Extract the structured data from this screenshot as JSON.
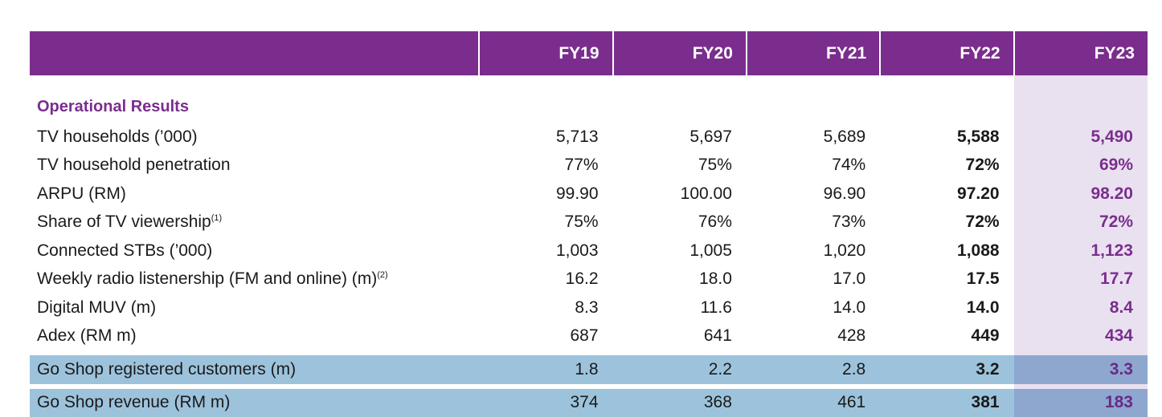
{
  "header": {
    "years": [
      "FY19",
      "FY20",
      "FY21",
      "FY22",
      "FY23"
    ]
  },
  "section_title": "Operational Results",
  "rows": [
    {
      "label": "TV households (’000)",
      "sup": "",
      "values": [
        "5,713",
        "5,697",
        "5,689",
        "5,588",
        "5,490"
      ]
    },
    {
      "label": "TV household penetration",
      "sup": "",
      "values": [
        "77%",
        "75%",
        "74%",
        "72%",
        "69%"
      ]
    },
    {
      "label": "ARPU (RM)",
      "sup": "",
      "values": [
        "99.90",
        "100.00",
        "96.90",
        "97.20",
        "98.20"
      ]
    },
    {
      "label": "Share of TV viewership",
      "sup": "(1)",
      "values": [
        "75%",
        "76%",
        "73%",
        "72%",
        "72%"
      ]
    },
    {
      "label": "Connected STBs (’000)",
      "sup": "",
      "values": [
        "1,003",
        "1,005",
        "1,020",
        "1,088",
        "1,123"
      ]
    },
    {
      "label": "Weekly radio listenership (FM and online) (m)",
      "sup": "(2)",
      "values": [
        "16.2",
        "18.0",
        "17.0",
        "17.5",
        "17.7"
      ]
    },
    {
      "label": "Digital MUV (m)",
      "sup": "",
      "values": [
        "8.3",
        "11.6",
        "14.0",
        "14.0",
        "8.4"
      ]
    },
    {
      "label": "Adex (RM m)",
      "sup": "",
      "values": [
        "687",
        "641",
        "428",
        "449",
        "434"
      ]
    },
    {
      "label": "Go Shop registered customers (m)",
      "sup": "",
      "values": [
        "1.8",
        "2.2",
        "2.8",
        "3.2",
        "3.3"
      ]
    },
    {
      "label": "Go Shop revenue (RM m)",
      "sup": "",
      "values": [
        "374",
        "368",
        "461",
        "381",
        "183"
      ]
    }
  ],
  "colors": {
    "header_bg": "#7b2d8e",
    "accent_text": "#7b2d8e",
    "fy23_band": "#e9e1ef",
    "highlight_row": "#9dc3dc",
    "highlight_row_fy23": "#8da7cf"
  }
}
